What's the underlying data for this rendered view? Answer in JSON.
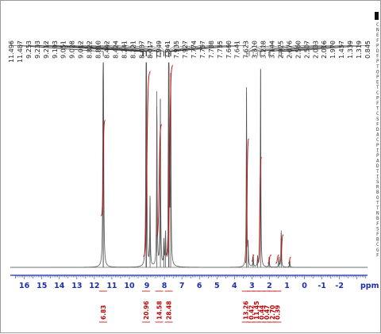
{
  "chart_data": {
    "type": "line",
    "title": "",
    "xlabel": "ppm",
    "xlim": [
      16.8,
      -3.6
    ],
    "x_reversed": true,
    "x_ticks": [
      16,
      15,
      14,
      13,
      12,
      11,
      10,
      9,
      8,
      7,
      6,
      5,
      4,
      3,
      2,
      1,
      0,
      -1,
      -2
    ],
    "peak_labels": [
      "11.496",
      "11.487",
      "9.253",
      "9.233",
      "9.212",
      "9.193",
      "9.051",
      "9.028",
      "9.012",
      "8.822",
      "8.810",
      "8.442",
      "8.424",
      "8.241",
      "8.221",
      "8.037",
      "8.017",
      "7.949",
      "7.941",
      "7.935",
      "7.927",
      "7.774",
      "7.757",
      "7.738",
      "7.735",
      "7.660",
      "7.641",
      "7.623",
      "3.310",
      "3.218",
      "3.144",
      "2.925",
      "2.676",
      "2.560",
      "2.507",
      "2.033",
      "2.016",
      "1.970",
      "1.457",
      "1.339",
      "1.319",
      "0.845"
    ],
    "integrals": [
      {
        "center": 11.5,
        "value": "6.83"
      },
      {
        "center": 9.0,
        "value": "20.96"
      },
      {
        "center": 8.3,
        "value": "14.58"
      },
      {
        "center": 7.7,
        "value": "28.48"
      },
      {
        "center": 3.28,
        "value": "13.26"
      },
      {
        "center": 2.95,
        "value": "0.42"
      },
      {
        "center": 2.55,
        "value": "11.45"
      },
      {
        "center": 2.0,
        "value": "0.44"
      },
      {
        "center": 1.55,
        "value": "0.47"
      },
      {
        "center": 1.3,
        "value": "2.70"
      },
      {
        "center": 0.85,
        "value": "0.39"
      }
    ],
    "peaks": [
      {
        "x": 11.496,
        "h": 0.96
      },
      {
        "x": 11.487,
        "h": 0.93
      },
      {
        "x": 9.05,
        "h": 0.92
      },
      {
        "x": 9.02,
        "h": 0.9
      },
      {
        "x": 8.82,
        "h": 0.35
      },
      {
        "x": 8.43,
        "h": 0.86
      },
      {
        "x": 8.23,
        "h": 0.82
      },
      {
        "x": 8.03,
        "h": 0.12
      },
      {
        "x": 7.94,
        "h": 0.15
      },
      {
        "x": 7.76,
        "h": 0.97
      },
      {
        "x": 7.74,
        "h": 0.99
      },
      {
        "x": 7.64,
        "h": 0.95
      },
      {
        "x": 3.31,
        "h": 0.88
      },
      {
        "x": 3.22,
        "h": 0.1
      },
      {
        "x": 2.93,
        "h": 0.06
      },
      {
        "x": 2.676,
        "h": 0.05
      },
      {
        "x": 2.507,
        "h": 0.97
      },
      {
        "x": 2.02,
        "h": 0.05
      },
      {
        "x": 1.46,
        "h": 0.05
      },
      {
        "x": 1.33,
        "h": 0.18
      },
      {
        "x": 0.845,
        "h": 0.04
      }
    ]
  },
  "side_labels": [
    "C",
    "N",
    "E",
    "F",
    "P",
    "D",
    "F",
    "P",
    "T",
    "O",
    "P",
    "E",
    "T",
    "C",
    "P",
    "F",
    "T",
    "C",
    "S",
    "F",
    "D",
    "A",
    "C",
    "P",
    "I",
    "P",
    "A",
    "D",
    "T",
    "I",
    "S",
    "R",
    "B",
    "O",
    "T",
    "T",
    "N",
    "B",
    "F",
    "S",
    "F",
    "B",
    "C",
    "G",
    "F"
  ]
}
